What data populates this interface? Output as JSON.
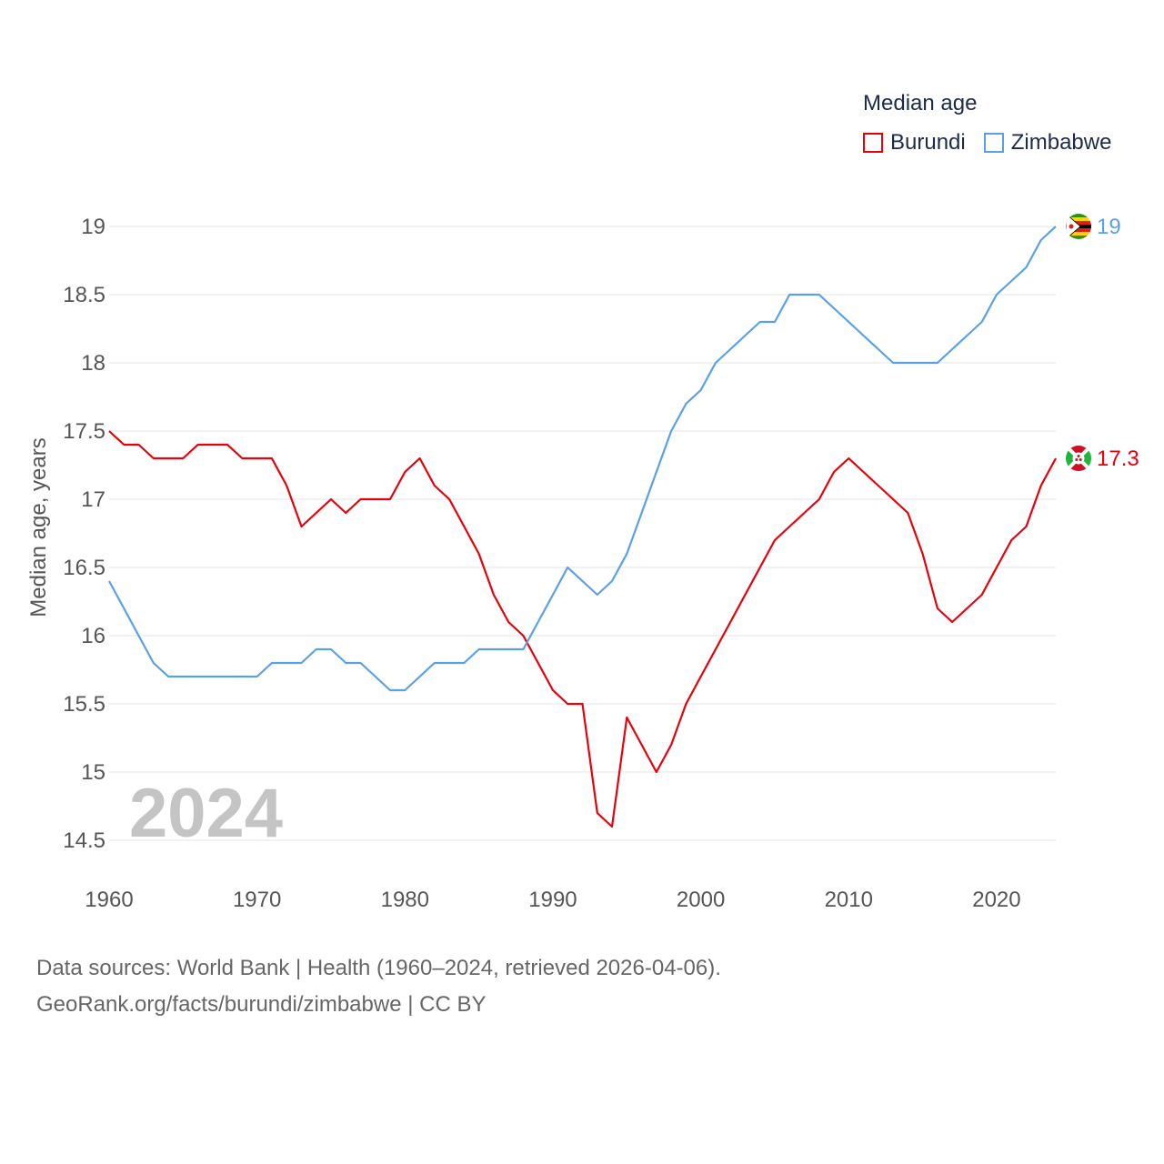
{
  "chart_data": {
    "type": "line",
    "legend_title": "Median age",
    "ylabel": "Median age, years",
    "year_label": "2024",
    "x": [
      1960,
      1961,
      1962,
      1963,
      1964,
      1965,
      1966,
      1967,
      1968,
      1969,
      1970,
      1971,
      1972,
      1973,
      1974,
      1975,
      1976,
      1977,
      1978,
      1979,
      1980,
      1981,
      1982,
      1983,
      1984,
      1985,
      1986,
      1987,
      1988,
      1989,
      1990,
      1991,
      1992,
      1993,
      1994,
      1995,
      1996,
      1997,
      1998,
      1999,
      2000,
      2001,
      2002,
      2003,
      2004,
      2005,
      2006,
      2007,
      2008,
      2009,
      2010,
      2011,
      2012,
      2013,
      2014,
      2015,
      2016,
      2017,
      2018,
      2019,
      2020,
      2021,
      2022,
      2023,
      2024
    ],
    "xlim": [
      1960,
      2024
    ],
    "xticks": [
      1960,
      1970,
      1980,
      1990,
      2000,
      2010,
      2020
    ],
    "xtick_labels": [
      "1960",
      "1970",
      "1980",
      "1990",
      "2000",
      "2010",
      "2020"
    ],
    "ylim": [
      14.5,
      19
    ],
    "yticks": [
      14.5,
      15,
      15.5,
      16,
      16.5,
      17,
      17.5,
      18,
      18.5,
      19
    ],
    "ytick_labels": [
      "14.5",
      "15",
      "15.5",
      "16",
      "16.5",
      "17",
      "17.5",
      "18",
      "18.5",
      "19"
    ],
    "series": [
      {
        "name": "Burundi",
        "color": "#e8000b",
        "end_label": "17.3",
        "flag": "burundi-flag",
        "values": [
          17.5,
          17.4,
          17.4,
          17.3,
          17.3,
          17.3,
          17.4,
          17.4,
          17.4,
          17.3,
          17.3,
          17.3,
          17.1,
          16.8,
          16.9,
          17.0,
          16.9,
          17.0,
          17.0,
          17.0,
          17.2,
          17.3,
          17.1,
          17.0,
          16.8,
          16.6,
          16.3,
          16.1,
          16.0,
          15.8,
          15.6,
          15.5,
          15.5,
          14.7,
          14.6,
          15.4,
          15.2,
          15.0,
          15.2,
          15.5,
          15.7,
          15.9,
          16.1,
          16.3,
          16.5,
          16.7,
          16.8,
          16.9,
          17.0,
          17.2,
          17.3,
          17.2,
          17.1,
          17.0,
          16.9,
          16.6,
          16.2,
          16.1,
          16.2,
          16.3,
          16.5,
          16.7,
          16.8,
          17.1,
          17.3
        ]
      },
      {
        "name": "Zimbabwe",
        "color": "#5aa0e6",
        "end_label": "19",
        "flag": "zimbabwe-flag",
        "values": [
          16.4,
          16.2,
          16.0,
          15.8,
          15.7,
          15.7,
          15.7,
          15.7,
          15.7,
          15.7,
          15.7,
          15.8,
          15.8,
          15.8,
          15.9,
          15.9,
          15.8,
          15.8,
          15.7,
          15.6,
          15.6,
          15.7,
          15.8,
          15.8,
          15.8,
          15.9,
          15.9,
          15.9,
          15.9,
          16.1,
          16.3,
          16.5,
          16.4,
          16.3,
          16.4,
          16.6,
          16.9,
          17.2,
          17.5,
          17.7,
          17.8,
          18.0,
          18.1,
          18.2,
          18.3,
          18.3,
          18.5,
          18.5,
          18.5,
          18.4,
          18.3,
          18.2,
          18.1,
          18.0,
          18.0,
          18.0,
          18.0,
          18.1,
          18.2,
          18.3,
          18.5,
          18.6,
          18.7,
          18.9,
          19.0
        ]
      }
    ]
  },
  "footer": {
    "line1": "Data sources: World Bank | Health (1960–2024, retrieved 2026-04-06).",
    "line2": "GeoRank.org/facts/burundi/zimbabwe | CC BY"
  }
}
